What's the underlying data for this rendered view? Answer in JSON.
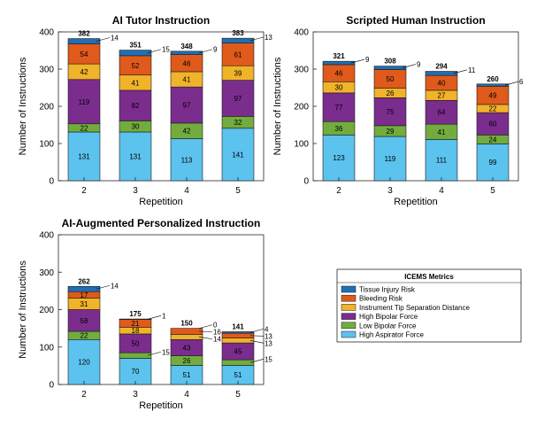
{
  "legend": {
    "title": "ICEMS Metrics",
    "entries": [
      {
        "name": "Tissue Injury Risk",
        "color": "#1f6fb4"
      },
      {
        "name": "Bleeding Risk",
        "color": "#e05a1c"
      },
      {
        "name": "Instrument Tip Separation Distance",
        "color": "#f1b32a"
      },
      {
        "name": "High Bipolar Force",
        "color": "#7b2d8e"
      },
      {
        "name": "Low Bipolar Force",
        "color": "#72ac3e"
      },
      {
        "name": "High Aspirator Force",
        "color": "#5cc2ee"
      }
    ]
  },
  "chart_data": [
    {
      "type": "bar",
      "stacked": true,
      "title": "AI Tutor Instruction",
      "xlabel": "Repetition",
      "ylabel": "Number of Instructions",
      "categories": [
        "2",
        "3",
        "4",
        "5"
      ],
      "ylim": [
        0,
        400
      ],
      "yticks": [
        0,
        100,
        200,
        300,
        400
      ],
      "series": [
        {
          "name": "High Aspirator Force",
          "values": [
            131,
            131,
            113,
            141
          ]
        },
        {
          "name": "Low Bipolar Force",
          "values": [
            22,
            30,
            42,
            32
          ]
        },
        {
          "name": "High Bipolar Force",
          "values": [
            119,
            82,
            97,
            97
          ]
        },
        {
          "name": "Instrument Tip Separation Distance",
          "values": [
            42,
            41,
            41,
            39
          ]
        },
        {
          "name": "Bleeding Risk",
          "values": [
            54,
            52,
            46,
            61
          ]
        },
        {
          "name": "Tissue Injury Risk",
          "values": [
            14,
            15,
            9,
            13
          ]
        }
      ],
      "totals": [
        382,
        351,
        348,
        383
      ]
    },
    {
      "type": "bar",
      "stacked": true,
      "title": "Scripted Human Instruction",
      "xlabel": "Repetition",
      "ylabel": "Number of Instructions",
      "categories": [
        "2",
        "3",
        "4",
        "5"
      ],
      "ylim": [
        0,
        400
      ],
      "yticks": [
        0,
        100,
        200,
        300,
        400
      ],
      "series": [
        {
          "name": "High Aspirator Force",
          "values": [
            123,
            119,
            111,
            99
          ]
        },
        {
          "name": "Low Bipolar Force",
          "values": [
            36,
            29,
            41,
            24
          ]
        },
        {
          "name": "High Bipolar Force",
          "values": [
            77,
            75,
            64,
            60
          ]
        },
        {
          "name": "Instrument Tip Separation Distance",
          "values": [
            30,
            26,
            27,
            22
          ]
        },
        {
          "name": "Bleeding Risk",
          "values": [
            46,
            50,
            40,
            49
          ]
        },
        {
          "name": "Tissue Injury Risk",
          "values": [
            9,
            9,
            11,
            6
          ]
        }
      ],
      "totals": [
        321,
        308,
        294,
        260
      ]
    },
    {
      "type": "bar",
      "stacked": true,
      "title": "AI-Augmented Personalized Instruction",
      "xlabel": "Repetition",
      "ylabel": "Number of Instructions",
      "categories": [
        "2",
        "3",
        "4",
        "5"
      ],
      "ylim": [
        0,
        400
      ],
      "yticks": [
        0,
        100,
        200,
        300,
        400
      ],
      "series": [
        {
          "name": "High Aspirator Force",
          "values": [
            120,
            70,
            51,
            51
          ]
        },
        {
          "name": "Low Bipolar Force",
          "values": [
            22,
            15,
            26,
            15
          ]
        },
        {
          "name": "High Bipolar Force",
          "values": [
            58,
            50,
            43,
            45
          ]
        },
        {
          "name": "Instrument Tip Separation Distance",
          "values": [
            31,
            18,
            14,
            13
          ]
        },
        {
          "name": "Bleeding Risk",
          "values": [
            17,
            21,
            16,
            13
          ]
        },
        {
          "name": "Tissue Injury Risk",
          "values": [
            14,
            1,
            0,
            4
          ]
        }
      ],
      "totals": [
        262,
        175,
        150,
        141
      ]
    }
  ]
}
